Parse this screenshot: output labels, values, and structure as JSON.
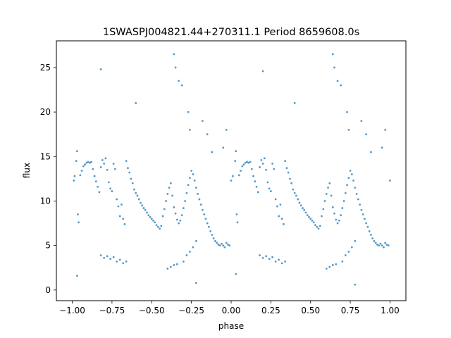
{
  "chart_data": {
    "type": "scatter",
    "title": "1SWASPJ004821.44+270311.1 Period 8659608.0s",
    "xlabel": "phase",
    "ylabel": "flux",
    "xlim": [
      -1.1,
      1.1
    ],
    "ylim": [
      -1.2,
      28.0
    ],
    "xticks": [
      -1.0,
      -0.75,
      -0.5,
      -0.25,
      0.0,
      0.25,
      0.5,
      0.75,
      1.0
    ],
    "xtick_labels": [
      "−1.00",
      "−0.75",
      "−0.50",
      "−0.25",
      "0.00",
      "0.25",
      "0.50",
      "0.75",
      "1.00"
    ],
    "yticks": [
      0,
      5,
      10,
      15,
      20,
      25
    ],
    "ytick_labels": [
      "0",
      "5",
      "10",
      "15",
      "20",
      "25"
    ],
    "grid": false,
    "marker_color": "#1f77b4",
    "note_periodic": "Light curve folded on period; pattern repeats with phase period 1.0",
    "series": [
      {
        "points": [
          [
            -0.99,
            12.3
          ],
          [
            -0.985,
            12.8
          ],
          [
            -0.975,
            14.5
          ],
          [
            -0.97,
            15.6
          ],
          [
            -0.965,
            8.5
          ],
          [
            -0.96,
            7.6
          ],
          [
            -0.95,
            12.9
          ],
          [
            -0.94,
            13.4
          ],
          [
            -0.93,
            13.9
          ],
          [
            -0.92,
            14.1
          ],
          [
            -0.91,
            14.3
          ],
          [
            -0.9,
            14.4
          ],
          [
            -0.89,
            14.3
          ],
          [
            -0.88,
            14.4
          ],
          [
            -0.87,
            13.6
          ],
          [
            -0.86,
            12.8
          ],
          [
            -0.85,
            12.2
          ],
          [
            -0.84,
            11.6
          ],
          [
            -0.83,
            11.0
          ],
          [
            -0.82,
            13.8
          ],
          [
            -0.81,
            14.6
          ],
          [
            -0.8,
            14.2
          ],
          [
            -0.79,
            14.8
          ],
          [
            -0.78,
            13.5
          ],
          [
            -0.77,
            12.1
          ],
          [
            -0.76,
            11.4
          ],
          [
            -0.75,
            11.1
          ],
          [
            -0.74,
            14.2
          ],
          [
            -0.73,
            13.6
          ],
          [
            -0.72,
            10.2
          ],
          [
            -0.71,
            9.4
          ],
          [
            -0.7,
            8.3
          ],
          [
            -0.69,
            9.6
          ],
          [
            -0.68,
            8.0
          ],
          [
            -0.67,
            7.4
          ],
          [
            -0.66,
            14.5
          ],
          [
            -0.65,
            13.7
          ],
          [
            -0.64,
            13.2
          ],
          [
            -0.63,
            12.5
          ],
          [
            -0.62,
            12.0
          ],
          [
            -0.61,
            11.3
          ],
          [
            -0.6,
            10.9
          ],
          [
            -0.59,
            10.6
          ],
          [
            -0.58,
            10.2
          ],
          [
            -0.57,
            9.8
          ],
          [
            -0.56,
            9.5
          ],
          [
            -0.55,
            9.2
          ],
          [
            -0.54,
            9.0
          ],
          [
            -0.53,
            8.7
          ],
          [
            -0.52,
            8.4
          ],
          [
            -0.51,
            8.2
          ],
          [
            -0.5,
            8.0
          ],
          [
            -0.49,
            7.8
          ],
          [
            -0.48,
            7.6
          ],
          [
            -0.47,
            7.3
          ],
          [
            -0.46,
            7.1
          ],
          [
            -0.45,
            6.9
          ],
          [
            -0.44,
            7.2
          ],
          [
            -0.43,
            8.3
          ],
          [
            -0.42,
            9.1
          ],
          [
            -0.41,
            10.0
          ],
          [
            -0.4,
            10.8
          ],
          [
            -0.39,
            11.5
          ],
          [
            -0.38,
            12.0
          ],
          [
            -0.37,
            10.6
          ],
          [
            -0.36,
            9.3
          ],
          [
            -0.35,
            8.6
          ],
          [
            -0.34,
            7.9
          ],
          [
            -0.33,
            7.5
          ],
          [
            -0.32,
            7.8
          ],
          [
            -0.31,
            8.4
          ],
          [
            -0.3,
            9.2
          ],
          [
            -0.29,
            10.0
          ],
          [
            -0.28,
            10.9
          ],
          [
            -0.27,
            11.8
          ],
          [
            -0.26,
            12.6
          ],
          [
            -0.25,
            13.4
          ],
          [
            -0.24,
            13.0
          ],
          [
            -0.23,
            12.3
          ],
          [
            -0.22,
            11.5
          ],
          [
            -0.21,
            10.8
          ],
          [
            -0.2,
            10.2
          ],
          [
            -0.19,
            9.6
          ],
          [
            -0.18,
            9.0
          ],
          [
            -0.17,
            8.5
          ],
          [
            -0.16,
            8.0
          ],
          [
            -0.15,
            7.5
          ],
          [
            -0.14,
            7.1
          ],
          [
            -0.13,
            6.6
          ],
          [
            -0.12,
            6.2
          ],
          [
            -0.11,
            5.8
          ],
          [
            -0.1,
            5.5
          ],
          [
            -0.09,
            5.3
          ],
          [
            -0.08,
            5.1
          ],
          [
            -0.07,
            5.0
          ],
          [
            -0.06,
            5.2
          ],
          [
            -0.05,
            5.0
          ],
          [
            -0.04,
            4.8
          ],
          [
            -0.03,
            5.3
          ],
          [
            -0.02,
            5.1
          ],
          [
            -0.01,
            5.0
          ],
          [
            0.0,
            12.3
          ],
          [
            0.01,
            12.8
          ],
          [
            0.025,
            14.5
          ],
          [
            0.03,
            15.6
          ],
          [
            0.035,
            8.5
          ],
          [
            0.04,
            7.6
          ],
          [
            0.05,
            12.9
          ],
          [
            0.06,
            13.4
          ],
          [
            0.07,
            13.9
          ],
          [
            0.08,
            14.1
          ],
          [
            0.09,
            14.3
          ],
          [
            0.1,
            14.4
          ],
          [
            0.11,
            14.3
          ],
          [
            0.12,
            14.4
          ],
          [
            0.13,
            13.6
          ],
          [
            0.14,
            12.8
          ],
          [
            0.15,
            12.2
          ],
          [
            0.16,
            11.6
          ],
          [
            0.17,
            11.0
          ],
          [
            0.18,
            13.8
          ],
          [
            0.19,
            14.6
          ],
          [
            0.2,
            14.2
          ],
          [
            0.21,
            14.8
          ],
          [
            0.22,
            13.5
          ],
          [
            0.23,
            12.1
          ],
          [
            0.24,
            11.4
          ],
          [
            0.25,
            11.1
          ],
          [
            0.26,
            14.2
          ],
          [
            0.27,
            13.6
          ],
          [
            0.28,
            10.2
          ],
          [
            0.29,
            9.4
          ],
          [
            0.3,
            8.3
          ],
          [
            0.31,
            9.6
          ],
          [
            0.32,
            8.0
          ],
          [
            0.33,
            7.4
          ],
          [
            0.34,
            14.5
          ],
          [
            0.35,
            13.7
          ],
          [
            0.36,
            13.2
          ],
          [
            0.37,
            12.5
          ],
          [
            0.38,
            12.0
          ],
          [
            0.39,
            11.3
          ],
          [
            0.4,
            10.9
          ],
          [
            0.41,
            10.6
          ],
          [
            0.42,
            10.2
          ],
          [
            0.43,
            9.8
          ],
          [
            0.44,
            9.5
          ],
          [
            0.45,
            9.2
          ],
          [
            0.46,
            9.0
          ],
          [
            0.47,
            8.7
          ],
          [
            0.48,
            8.4
          ],
          [
            0.49,
            8.2
          ],
          [
            0.5,
            8.0
          ],
          [
            0.51,
            7.8
          ],
          [
            0.52,
            7.6
          ],
          [
            0.53,
            7.3
          ],
          [
            0.54,
            7.1
          ],
          [
            0.55,
            6.9
          ],
          [
            0.56,
            7.2
          ],
          [
            0.57,
            8.3
          ],
          [
            0.58,
            9.1
          ],
          [
            0.59,
            10.0
          ],
          [
            0.6,
            10.8
          ],
          [
            0.61,
            11.5
          ],
          [
            0.62,
            12.0
          ],
          [
            0.63,
            10.6
          ],
          [
            0.64,
            9.3
          ],
          [
            0.65,
            8.6
          ],
          [
            0.66,
            7.9
          ],
          [
            0.67,
            7.5
          ],
          [
            0.68,
            7.8
          ],
          [
            0.69,
            8.4
          ],
          [
            0.7,
            9.2
          ],
          [
            0.71,
            10.0
          ],
          [
            0.72,
            10.9
          ],
          [
            0.73,
            11.8
          ],
          [
            0.74,
            12.6
          ],
          [
            0.75,
            13.4
          ],
          [
            0.76,
            13.0
          ],
          [
            0.77,
            12.3
          ],
          [
            0.78,
            11.5
          ],
          [
            0.79,
            10.8
          ],
          [
            0.8,
            10.2
          ],
          [
            0.81,
            9.6
          ],
          [
            0.82,
            9.0
          ],
          [
            0.83,
            8.5
          ],
          [
            0.84,
            8.0
          ],
          [
            0.85,
            7.5
          ],
          [
            0.86,
            7.1
          ],
          [
            0.87,
            6.6
          ],
          [
            0.88,
            6.2
          ],
          [
            0.89,
            5.8
          ],
          [
            0.9,
            5.5
          ],
          [
            0.91,
            5.3
          ],
          [
            0.92,
            5.1
          ],
          [
            0.93,
            5.0
          ],
          [
            0.94,
            5.2
          ],
          [
            0.95,
            5.0
          ],
          [
            0.96,
            4.8
          ],
          [
            0.97,
            5.3
          ],
          [
            0.98,
            5.1
          ],
          [
            0.99,
            5.0
          ],
          [
            1.0,
            12.3
          ],
          [
            -0.82,
            3.9
          ],
          [
            -0.8,
            3.6
          ],
          [
            -0.78,
            3.8
          ],
          [
            -0.76,
            3.5
          ],
          [
            -0.74,
            3.7
          ],
          [
            -0.72,
            3.2
          ],
          [
            -0.7,
            3.4
          ],
          [
            -0.68,
            3.0
          ],
          [
            -0.66,
            3.2
          ],
          [
            -0.4,
            2.4
          ],
          [
            -0.38,
            2.6
          ],
          [
            -0.36,
            2.8
          ],
          [
            -0.34,
            2.9
          ],
          [
            -0.3,
            3.2
          ],
          [
            -0.28,
            3.9
          ],
          [
            -0.26,
            4.3
          ],
          [
            -0.24,
            4.8
          ],
          [
            -0.22,
            5.5
          ],
          [
            0.18,
            3.9
          ],
          [
            0.2,
            3.6
          ],
          [
            0.22,
            3.8
          ],
          [
            0.24,
            3.5
          ],
          [
            0.26,
            3.7
          ],
          [
            0.28,
            3.2
          ],
          [
            0.3,
            3.4
          ],
          [
            0.32,
            3.0
          ],
          [
            0.34,
            3.2
          ],
          [
            0.6,
            2.4
          ],
          [
            0.62,
            2.6
          ],
          [
            0.64,
            2.8
          ],
          [
            0.66,
            2.9
          ],
          [
            0.7,
            3.2
          ],
          [
            0.72,
            3.9
          ],
          [
            0.74,
            4.3
          ],
          [
            0.76,
            4.8
          ],
          [
            0.78,
            5.5
          ],
          [
            -0.36,
            26.5
          ],
          [
            -0.35,
            25.0
          ],
          [
            -0.33,
            23.5
          ],
          [
            -0.31,
            23.0
          ],
          [
            -0.27,
            20.0
          ],
          [
            -0.26,
            18.0
          ],
          [
            -0.18,
            19.0
          ],
          [
            -0.15,
            17.5
          ],
          [
            -0.12,
            15.5
          ],
          [
            -0.05,
            16.0
          ],
          [
            -0.03,
            18.0
          ],
          [
            0.64,
            26.5
          ],
          [
            0.65,
            25.0
          ],
          [
            0.67,
            23.5
          ],
          [
            0.69,
            23.0
          ],
          [
            0.73,
            20.0
          ],
          [
            0.74,
            18.0
          ],
          [
            0.82,
            19.0
          ],
          [
            0.85,
            17.5
          ],
          [
            0.88,
            15.5
          ],
          [
            0.95,
            16.0
          ],
          [
            0.97,
            18.0
          ],
          [
            -0.97,
            1.6
          ],
          [
            0.03,
            1.8
          ],
          [
            -0.22,
            0.8
          ],
          [
            0.78,
            0.6
          ],
          [
            -0.82,
            24.8
          ],
          [
            0.2,
            24.6
          ],
          [
            -0.6,
            21.0
          ],
          [
            0.4,
            21.0
          ]
        ]
      }
    ]
  }
}
